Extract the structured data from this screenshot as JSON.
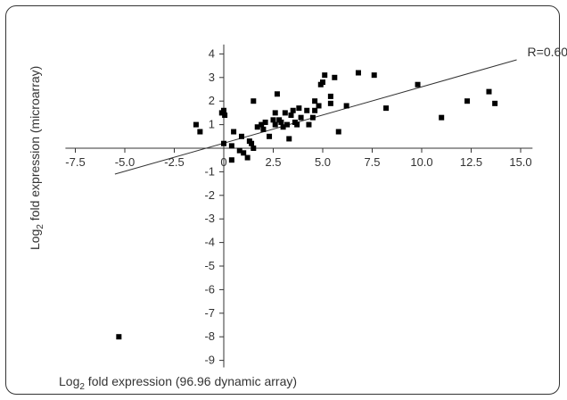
{
  "chart_data": {
    "type": "scatter",
    "xlabel": {
      "prefix": "Log",
      "sub": "2",
      "suffix": " fold expression (96.96 dynamic array)"
    },
    "ylabel": {
      "prefix": "Log",
      "sub": "2",
      "suffix": " fold expression (microarray)"
    },
    "x_ticks": [
      "-7.5",
      "-5.0",
      "-2.5",
      "0",
      "2.5",
      "5.0",
      "7.5",
      "10.0",
      "12.5",
      "15.0"
    ],
    "x_tick_values": [
      -7.5,
      -5.0,
      -2.5,
      0,
      2.5,
      5.0,
      7.5,
      10.0,
      12.5,
      15.0
    ],
    "y_ticks": [
      "4",
      "3",
      "2",
      "1",
      "-1",
      "-2",
      "-3",
      "-4",
      "-5",
      "-6",
      "-7",
      "-8",
      "-9"
    ],
    "y_tick_values": [
      4,
      3,
      2,
      1,
      -1,
      -2,
      -3,
      -4,
      -5,
      -6,
      -7,
      -8,
      -9
    ],
    "xlim": [
      -8.0,
      15.6
    ],
    "ylim": [
      -9.3,
      4.4
    ],
    "grid": false,
    "marker_color": "#000000",
    "fit_line": {
      "label": "R=0.60",
      "x": [
        -5.5,
        14.8
      ],
      "y": [
        -1.1,
        3.75
      ]
    },
    "points": [
      {
        "x": -5.3,
        "y": -8.0
      },
      {
        "x": -1.4,
        "y": 1.0
      },
      {
        "x": -1.2,
        "y": 0.7
      },
      {
        "x": -0.1,
        "y": 1.5
      },
      {
        "x": 0.0,
        "y": 1.6
      },
      {
        "x": 0.05,
        "y": 1.4
      },
      {
        "x": 0.0,
        "y": 0.2
      },
      {
        "x": 0.4,
        "y": 0.1
      },
      {
        "x": 0.4,
        "y": -0.5
      },
      {
        "x": 0.5,
        "y": 0.7
      },
      {
        "x": 0.8,
        "y": -0.1
      },
      {
        "x": 0.9,
        "y": 0.5
      },
      {
        "x": 1.0,
        "y": -0.2
      },
      {
        "x": 1.2,
        "y": -0.4
      },
      {
        "x": 1.3,
        "y": 0.3
      },
      {
        "x": 1.4,
        "y": 0.2
      },
      {
        "x": 1.5,
        "y": 0.0
      },
      {
        "x": 1.5,
        "y": 2.0
      },
      {
        "x": 1.7,
        "y": 0.9
      },
      {
        "x": 1.9,
        "y": 1.0
      },
      {
        "x": 2.0,
        "y": 0.8
      },
      {
        "x": 2.1,
        "y": 1.1
      },
      {
        "x": 2.3,
        "y": 0.5
      },
      {
        "x": 2.5,
        "y": 1.2
      },
      {
        "x": 2.6,
        "y": 1.0
      },
      {
        "x": 2.6,
        "y": 1.5
      },
      {
        "x": 2.7,
        "y": 2.3
      },
      {
        "x": 2.8,
        "y": 1.2
      },
      {
        "x": 2.9,
        "y": 1.1
      },
      {
        "x": 3.0,
        "y": 0.9
      },
      {
        "x": 3.1,
        "y": 1.5
      },
      {
        "x": 3.2,
        "y": 1.0
      },
      {
        "x": 3.3,
        "y": 0.4
      },
      {
        "x": 3.4,
        "y": 1.4
      },
      {
        "x": 3.5,
        "y": 1.6
      },
      {
        "x": 3.6,
        "y": 1.1
      },
      {
        "x": 3.7,
        "y": 1.0
      },
      {
        "x": 3.8,
        "y": 1.7
      },
      {
        "x": 3.9,
        "y": 1.3
      },
      {
        "x": 4.2,
        "y": 1.6
      },
      {
        "x": 4.3,
        "y": 1.0
      },
      {
        "x": 4.5,
        "y": 1.3
      },
      {
        "x": 4.6,
        "y": 1.6
      },
      {
        "x": 4.6,
        "y": 2.0
      },
      {
        "x": 4.8,
        "y": 1.8
      },
      {
        "x": 4.9,
        "y": 2.7
      },
      {
        "x": 5.0,
        "y": 2.8
      },
      {
        "x": 5.1,
        "y": 3.1
      },
      {
        "x": 5.4,
        "y": 2.2
      },
      {
        "x": 5.4,
        "y": 1.9
      },
      {
        "x": 5.6,
        "y": 3.0
      },
      {
        "x": 5.8,
        "y": 0.7
      },
      {
        "x": 6.2,
        "y": 1.8
      },
      {
        "x": 6.8,
        "y": 3.2
      },
      {
        "x": 7.6,
        "y": 3.1
      },
      {
        "x": 8.2,
        "y": 1.7
      },
      {
        "x": 9.8,
        "y": 2.7
      },
      {
        "x": 11.0,
        "y": 1.3
      },
      {
        "x": 12.3,
        "y": 2.0
      },
      {
        "x": 13.4,
        "y": 2.4
      },
      {
        "x": 13.7,
        "y": 1.9
      }
    ]
  }
}
